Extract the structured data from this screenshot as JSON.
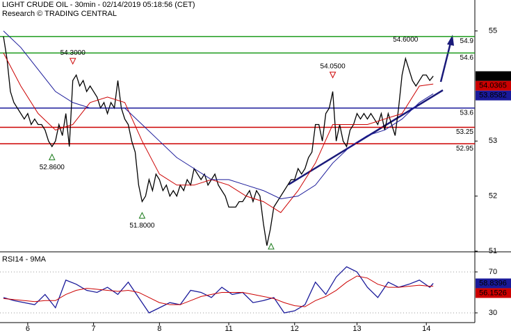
{
  "chart_data": [
    {
      "type": "line",
      "title": "LIGHT CRUDE OIL - 30min - 02/14/2019 05:18:56 (CET)",
      "subtitle": "Research © TRADING CENTRAL",
      "xlim": [
        -1,
        136
      ],
      "ylim": [
        51,
        55.55
      ],
      "yticks": [
        51,
        52,
        53,
        55
      ],
      "series": [
        {
          "color": "#000000",
          "values": [
            54.9,
            54.5,
            53.9,
            53.7,
            53.6,
            53.5,
            53.4,
            53.5,
            53.3,
            53.4,
            53.3,
            53.3,
            53.2,
            53.0,
            52.9,
            53.0,
            53.3,
            53.1,
            53.5,
            52.9,
            54.1,
            54.2,
            54.0,
            54.1,
            53.9,
            54.0,
            53.9,
            53.8,
            53.6,
            53.7,
            53.5,
            53.7,
            53.6,
            54.1,
            53.6,
            53.4,
            53.3,
            53.0,
            52.8,
            52.2,
            51.9,
            52.0,
            52.3,
            52.1,
            52.4,
            52.3,
            52.1,
            52.2,
            52.0,
            52.1,
            52.0,
            52.2,
            52.1,
            52.3,
            52.2,
            52.5,
            52.4,
            52.3,
            52.4,
            52.2,
            52.3,
            52.4,
            52.2,
            52.1,
            52.0,
            51.8,
            51.8,
            51.8,
            51.9,
            51.9,
            52.0,
            52.1,
            51.9,
            52.1,
            52.0,
            51.5,
            51.1,
            51.4,
            51.8,
            51.9,
            52.0,
            52.1,
            52.2,
            52.3,
            52.3,
            52.5,
            52.4,
            52.5,
            52.7,
            52.8,
            53.3,
            53.3,
            53.0,
            53.5,
            53.6,
            53.9,
            53.0,
            53.3,
            53.0,
            52.9,
            53.2,
            53.3,
            53.5,
            53.4,
            53.5,
            53.4,
            53.5,
            53.4,
            53.3,
            53.5,
            53.2,
            53.5,
            53.3,
            53.1,
            53.6,
            54.2,
            54.5,
            54.3,
            54.1,
            54.0,
            54.1,
            54.2,
            54.2,
            54.1,
            54.18
          ]
        },
        {
          "color": "#cc0000",
          "x": [
            0,
            5,
            10,
            15,
            20,
            25,
            30,
            35,
            40,
            45,
            50,
            55,
            60,
            65,
            70,
            75,
            80,
            85,
            90,
            95,
            100,
            105,
            110,
            115,
            120,
            124
          ],
          "values": [
            54.6,
            54.0,
            53.5,
            53.2,
            53.3,
            53.7,
            53.8,
            53.7,
            53.0,
            52.4,
            52.2,
            52.2,
            52.3,
            52.2,
            52.0,
            51.9,
            51.7,
            52.1,
            52.6,
            53.3,
            53.3,
            53.3,
            53.4,
            53.5,
            54.0,
            54.0365
          ]
        },
        {
          "color": "#1a1a9a",
          "x": [
            0,
            5,
            10,
            15,
            20,
            25,
            30,
            35,
            40,
            45,
            50,
            55,
            60,
            65,
            70,
            75,
            80,
            85,
            90,
            95,
            100,
            105,
            110,
            115,
            120,
            124
          ],
          "values": [
            55.0,
            54.7,
            54.3,
            53.9,
            53.7,
            53.6,
            53.6,
            53.6,
            53.3,
            53.0,
            52.7,
            52.5,
            52.3,
            52.3,
            52.2,
            52.1,
            51.95,
            52.0,
            52.2,
            52.6,
            52.9,
            53.1,
            53.2,
            53.4,
            53.7,
            53.8582
          ]
        }
      ],
      "levels": [
        {
          "value": 54.9,
          "color": "#1a9a1a"
        },
        {
          "value": 54.6,
          "color": "#1a9a1a"
        },
        {
          "value": 53.6,
          "color": "#1a1a9a"
        },
        {
          "value": 53.25,
          "color": "#cc0000"
        },
        {
          "value": 52.95,
          "color": "#cc0000"
        }
      ],
      "last_values": [
        {
          "value": 54.18,
          "color": "#000000"
        },
        {
          "value": 54.0365,
          "color": "#cc0000"
        },
        {
          "value": 53.8582,
          "color": "#1a1a9a"
        }
      ],
      "annotations": [
        {
          "x": 20,
          "value": 54.3,
          "label": "54.3000",
          "marker": "down"
        },
        {
          "x": 14,
          "value": 52.86,
          "label": "52.8600",
          "marker": "up"
        },
        {
          "x": 40,
          "value": 51.8,
          "label": "51.8000",
          "marker": "up"
        },
        {
          "x": 95,
          "value": 54.05,
          "label": "54.0500",
          "marker": "down"
        },
        {
          "x": 116,
          "value": 54.6,
          "label": "54.6000"
        }
      ]
    },
    {
      "type": "line",
      "title": "RSI14 - 9MA",
      "xlim": [
        -1,
        136
      ],
      "xticks": [
        {
          "value": 7,
          "label": "6"
        },
        {
          "value": 26,
          "label": "7"
        },
        {
          "value": 45,
          "label": "8"
        },
        {
          "value": 65,
          "label": "11"
        },
        {
          "value": 84,
          "label": "12"
        },
        {
          "value": 102,
          "label": "13"
        },
        {
          "value": 122,
          "label": "14"
        }
      ],
      "ylim": [
        20.5,
        87.6
      ],
      "yticks": [
        30,
        70
      ],
      "grid": true,
      "series": [
        {
          "color": "#1a1a9a",
          "x": [
            0,
            3,
            6,
            9,
            12,
            15,
            18,
            21,
            24,
            27,
            30,
            33,
            36,
            39,
            42,
            45,
            48,
            51,
            54,
            57,
            60,
            63,
            66,
            69,
            72,
            75,
            78,
            81,
            84,
            87,
            90,
            93,
            96,
            99,
            102,
            105,
            108,
            111,
            114,
            117,
            120,
            123,
            124
          ],
          "values": [
            45,
            42,
            40,
            38,
            48,
            35,
            62,
            58,
            52,
            50,
            55,
            48,
            60,
            45,
            30,
            35,
            40,
            38,
            52,
            50,
            45,
            55,
            48,
            50,
            40,
            42,
            45,
            30,
            32,
            38,
            60,
            48,
            65,
            75,
            70,
            55,
            45,
            60,
            55,
            58,
            62,
            55,
            58.8396
          ]
        },
        {
          "color": "#cc0000",
          "x": [
            0,
            3,
            6,
            9,
            12,
            15,
            18,
            21,
            24,
            27,
            30,
            33,
            36,
            39,
            42,
            45,
            48,
            51,
            54,
            57,
            60,
            63,
            66,
            69,
            72,
            75,
            78,
            81,
            84,
            87,
            90,
            93,
            96,
            99,
            102,
            105,
            108,
            111,
            114,
            117,
            120,
            123,
            124
          ],
          "values": [
            44,
            43,
            42,
            41,
            42,
            42,
            48,
            52,
            54,
            53,
            52,
            51,
            52,
            50,
            45,
            40,
            38,
            38,
            42,
            46,
            48,
            50,
            50,
            50,
            48,
            46,
            44,
            40,
            37,
            36,
            42,
            46,
            52,
            60,
            66,
            64,
            58,
            55,
            55,
            56,
            57,
            56,
            56.1526
          ]
        }
      ],
      "last_values": [
        {
          "value": 58.8396,
          "color": "#1a1a9a"
        },
        {
          "value": 56.1526,
          "color": "#cc0000"
        }
      ]
    }
  ]
}
